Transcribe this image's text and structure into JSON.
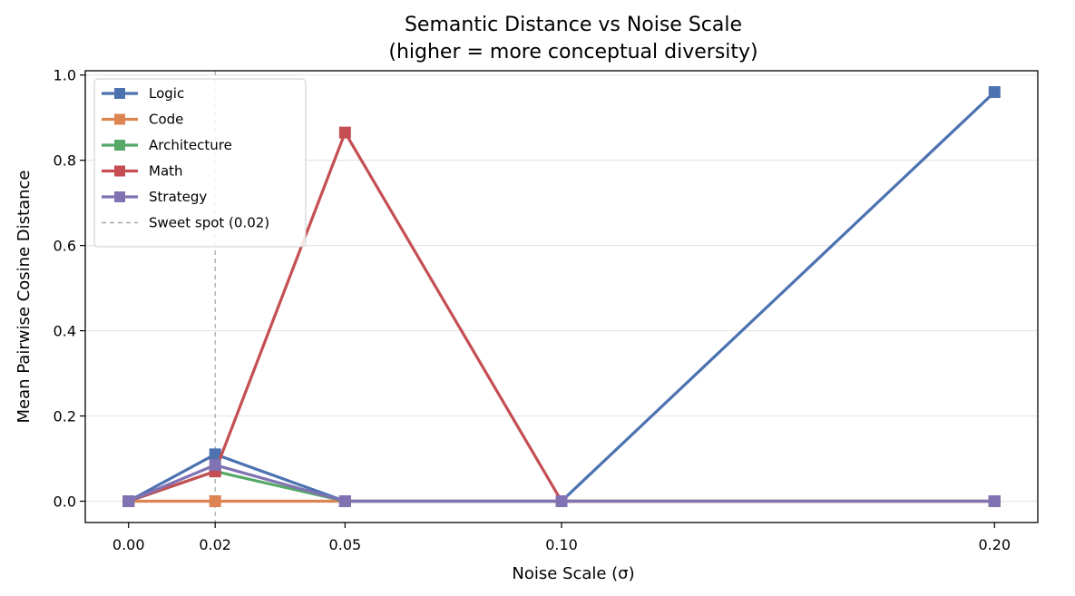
{
  "chart_data": {
    "type": "line",
    "title": "Semantic Distance vs Noise Scale",
    "subtitle": "(higher = more conceptual diversity)",
    "xlabel": "Noise Scale (σ)",
    "ylabel": "Mean Pairwise Cosine Distance",
    "x": [
      0.0,
      0.02,
      0.05,
      0.1,
      0.2
    ],
    "x_tick_labels": [
      "0.00",
      "0.02",
      "0.05",
      "0.10",
      "0.20"
    ],
    "xlim": [
      -0.01,
      0.21
    ],
    "ylim": [
      -0.05,
      1.01
    ],
    "y_ticks": [
      0.0,
      0.2,
      0.4,
      0.6,
      0.8,
      1.0
    ],
    "y_tick_labels": [
      "0.0",
      "0.2",
      "0.4",
      "0.6",
      "0.8",
      "1.0"
    ],
    "grid": "horizontal",
    "legend_position": "top-left",
    "series": [
      {
        "name": "Logic",
        "color": "#4c72b0",
        "values": [
          0.0,
          0.11,
          0.0,
          0.0,
          0.96
        ]
      },
      {
        "name": "Code",
        "color": "#dd8452",
        "values": [
          0.0,
          0.0,
          0.0,
          0.0,
          0.0
        ]
      },
      {
        "name": "Architecture",
        "color": "#55a868",
        "values": [
          0.0,
          0.07,
          0.0,
          0.0,
          0.0
        ]
      },
      {
        "name": "Math",
        "color": "#c44e52",
        "values": [
          0.0,
          0.07,
          0.865,
          0.0,
          0.0
        ]
      },
      {
        "name": "Strategy",
        "color": "#8172b3",
        "values": [
          0.0,
          0.085,
          0.0,
          0.0,
          0.0
        ]
      }
    ],
    "annotations": [
      {
        "type": "vline",
        "x": 0.02,
        "label": "Sweet spot (0.02)",
        "color": "#aaaaaa",
        "style": "dashed"
      }
    ]
  }
}
